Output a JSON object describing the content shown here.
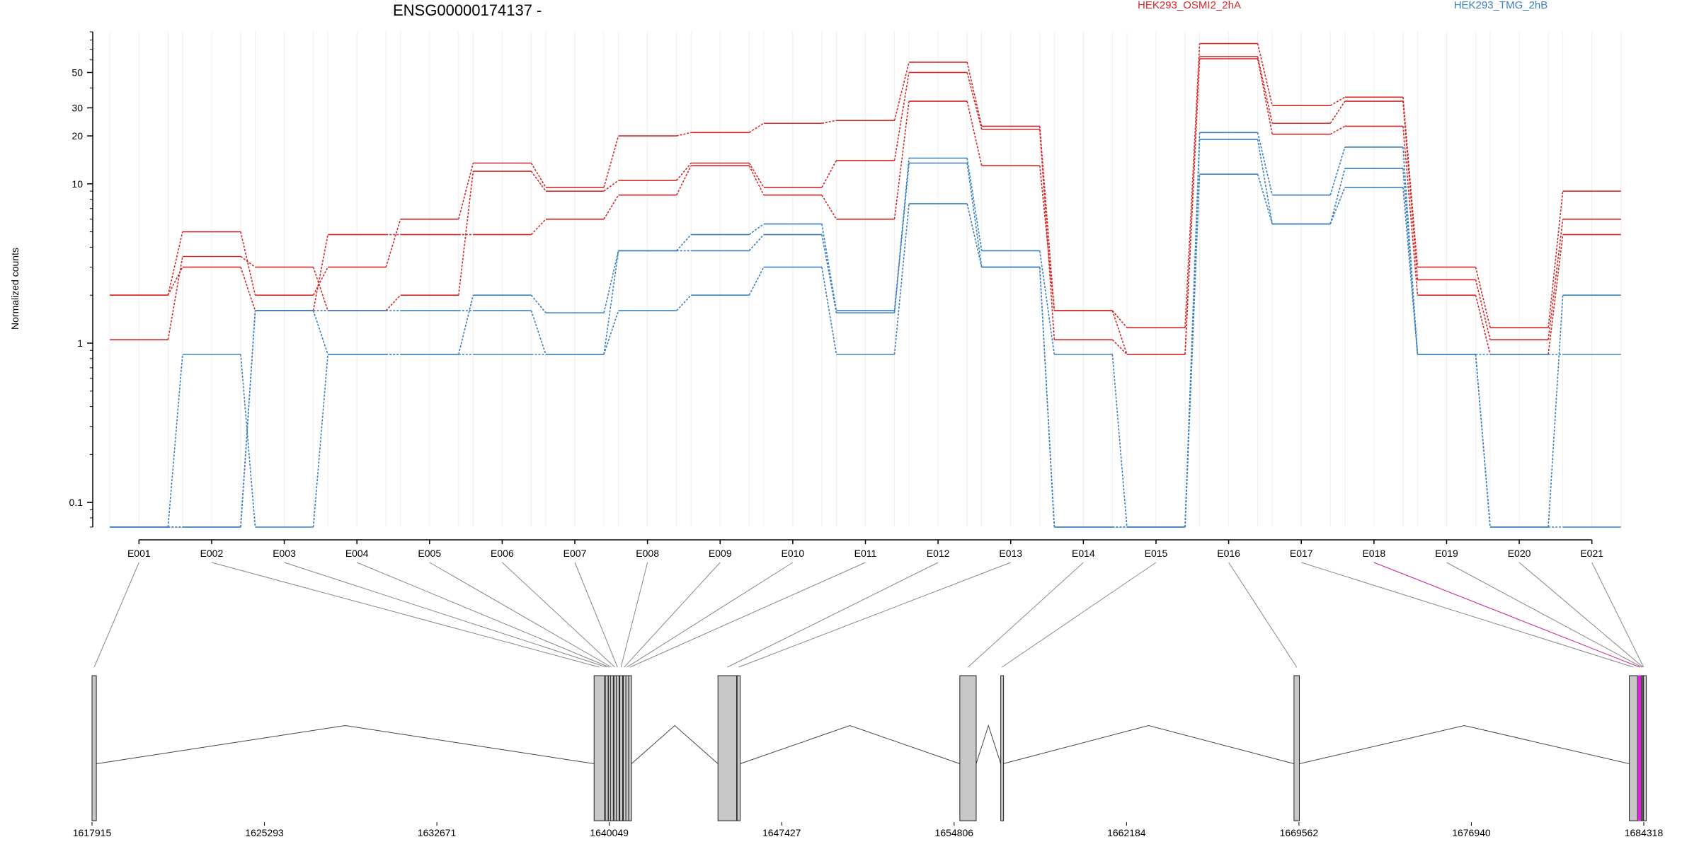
{
  "chart_data": {
    "type": "line",
    "title": "ENSG00000174137 -",
    "ylabel": "Normalized counts",
    "yscale": "log",
    "ylim": [
      0.07,
      90
    ],
    "yticks": [
      "0.1",
      "1",
      "10",
      "20",
      "30",
      "50"
    ],
    "categories": [
      "E001",
      "E002",
      "E003",
      "E004",
      "E005",
      "E006",
      "E007",
      "E008",
      "E009",
      "E010",
      "E011",
      "E012",
      "E013",
      "E014",
      "E015",
      "E016",
      "E017",
      "E018",
      "E019",
      "E020",
      "E021"
    ],
    "legend": [
      {
        "label": "HEK293_OSMI2_2hA",
        "color": "#d62728"
      },
      {
        "label": "HEK293_TMG_2hB",
        "color": "#3a7fbf"
      }
    ],
    "series": [
      {
        "group": "HEK293_OSMI2_2hA",
        "color": "#d62728",
        "values": [
          2.0,
          5.0,
          2.0,
          3.0,
          6.0,
          13.5,
          9.5,
          20,
          21,
          24,
          25,
          58,
          23,
          1.6,
          1.25,
          76,
          31,
          35,
          3.0,
          1.25,
          9.0
        ]
      },
      {
        "group": "HEK293_OSMI2_2hA",
        "color": "#d62728",
        "values": [
          1.05,
          3.5,
          3.0,
          1.6,
          2.0,
          12,
          9.0,
          10.5,
          13.5,
          9.5,
          14,
          50,
          22,
          1.05,
          0.85,
          63,
          24,
          33,
          2.5,
          1.05,
          6.0
        ]
      },
      {
        "group": "HEK293_OSMI2_2hA",
        "color": "#d62728",
        "values": [
          2.0,
          3.0,
          1.6,
          4.8,
          4.8,
          4.8,
          6.0,
          8.5,
          13,
          8.5,
          6.0,
          33,
          13,
          1.6,
          0.85,
          61,
          20.5,
          23,
          2.0,
          0.85,
          4.8
        ]
      },
      {
        "group": "HEK293_TMG_2hB",
        "color": "#3a7fbf",
        "values": [
          0.07,
          0.85,
          0.07,
          0.85,
          0.85,
          2.0,
          1.55,
          3.8,
          4.8,
          5.6,
          1.6,
          14.5,
          3.8,
          0.85,
          0.07,
          21,
          8.5,
          17,
          0.85,
          0.07,
          2.0
        ]
      },
      {
        "group": "HEK293_TMG_2hB",
        "color": "#3a7fbf",
        "values": [
          0.07,
          0.07,
          1.6,
          1.6,
          1.6,
          1.6,
          0.85,
          3.8,
          3.8,
          4.8,
          1.55,
          13.5,
          3.0,
          0.07,
          0.07,
          19,
          5.6,
          12.5,
          0.85,
          0.85,
          0.85
        ]
      },
      {
        "group": "HEK293_TMG_2hB",
        "color": "#3a7fbf",
        "values": [
          0.07,
          0.07,
          1.6,
          0.85,
          0.85,
          0.85,
          0.85,
          1.6,
          2.0,
          3.0,
          0.85,
          7.5,
          3.0,
          0.07,
          0.07,
          11.5,
          5.6,
          9.5,
          0.85,
          0.07,
          0.07
        ]
      }
    ]
  },
  "gene_model": {
    "coordinate_labels": [
      "1617915",
      "1625293",
      "1632671",
      "1640049",
      "1647427",
      "1654806",
      "1662184",
      "1669562",
      "1676940",
      "1684318"
    ],
    "coordinate_values": [
      1617915,
      1625293,
      1632671,
      1640049,
      1647427,
      1654806,
      1662184,
      1669562,
      1676940,
      1684318
    ],
    "exon_color": "#c8c8c8",
    "highlight_color": "#e61ee6",
    "highlight_exon": "E018",
    "exons": [
      {
        "id": "E001",
        "start": 1617915,
        "end": 1618100
      },
      {
        "id": "E002",
        "start": 1639400,
        "end": 1639850
      },
      {
        "id": "E003",
        "start": 1639880,
        "end": 1639980
      },
      {
        "id": "E004",
        "start": 1640010,
        "end": 1640080
      },
      {
        "id": "E005",
        "start": 1640100,
        "end": 1640180
      },
      {
        "id": "E006",
        "start": 1640250,
        "end": 1640320
      },
      {
        "id": "E007",
        "start": 1640350,
        "end": 1640450
      },
      {
        "id": "E008",
        "start": 1640500,
        "end": 1640600
      },
      {
        "id": "E009",
        "start": 1640650,
        "end": 1640720
      },
      {
        "id": "E010",
        "start": 1640760,
        "end": 1640850
      },
      {
        "id": "E011",
        "start": 1640880,
        "end": 1641000
      },
      {
        "id": "E012",
        "start": 1644700,
        "end": 1645500
      },
      {
        "id": "E013",
        "start": 1645520,
        "end": 1645650
      },
      {
        "id": "E014",
        "start": 1655050,
        "end": 1655750
      },
      {
        "id": "E015",
        "start": 1656800,
        "end": 1656900
      },
      {
        "id": "E016",
        "start": 1669350,
        "end": 1669580
      },
      {
        "id": "E017",
        "start": 1683700,
        "end": 1684050
      },
      {
        "id": "E018",
        "start": 1684080,
        "end": 1684200
      },
      {
        "id": "E019",
        "start": 1684210,
        "end": 1684260
      },
      {
        "id": "E020",
        "start": 1684270,
        "end": 1684300
      },
      {
        "id": "E021",
        "start": 1684305,
        "end": 1684318
      }
    ]
  }
}
